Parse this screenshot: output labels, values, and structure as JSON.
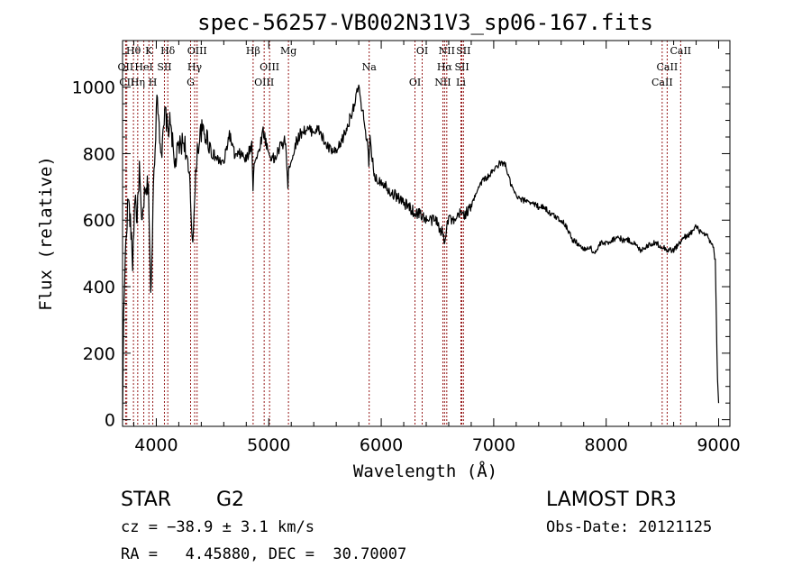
{
  "chart_data": {
    "type": "line",
    "title": "spec-56257-VB002N31V3_sp06-167.fits",
    "xlabel": "Wavelength (Å)",
    "ylabel": "Flux (relative)",
    "xlim": [
      3700,
      9100
    ],
    "ylim": [
      -20,
      1140
    ],
    "xticks": [
      4000,
      5000,
      6000,
      7000,
      8000,
      9000
    ],
    "yticks": [
      0,
      200,
      400,
      600,
      800,
      1000
    ],
    "grid": false,
    "series": [
      {
        "name": "flux",
        "color": "#000000",
        "x": [
          3700,
          3710,
          3730,
          3750,
          3770,
          3790,
          3810,
          3830,
          3850,
          3870,
          3890,
          3910,
          3930,
          3950,
          3960,
          3970,
          3990,
          4010,
          4030,
          4050,
          4080,
          4100,
          4130,
          4160,
          4200,
          4250,
          4300,
          4320,
          4340,
          4360,
          4400,
          4450,
          4500,
          4550,
          4600,
          4650,
          4700,
          4750,
          4800,
          4850,
          4860,
          4870,
          4900,
          4950,
          5000,
          5050,
          5100,
          5150,
          5170,
          5180,
          5200,
          5250,
          5300,
          5350,
          5400,
          5450,
          5500,
          5550,
          5600,
          5650,
          5700,
          5750,
          5780,
          5800,
          5820,
          5850,
          5880,
          5890,
          5900,
          5920,
          5950,
          6000,
          6050,
          6100,
          6150,
          6200,
          6250,
          6300,
          6350,
          6400,
          6450,
          6500,
          6520,
          6540,
          6563,
          6580,
          6600,
          6650,
          6700,
          6750,
          6800,
          6850,
          6900,
          6950,
          7000,
          7050,
          7100,
          7150,
          7200,
          7250,
          7300,
          7350,
          7400,
          7450,
          7500,
          7550,
          7600,
          7650,
          7700,
          7750,
          7800,
          7850,
          7900,
          7950,
          8000,
          8050,
          8100,
          8150,
          8200,
          8250,
          8300,
          8350,
          8400,
          8450,
          8500,
          8550,
          8600,
          8650,
          8700,
          8750,
          8800,
          8850,
          8900,
          8950,
          8970,
          8990,
          9000
        ],
        "values": [
          0,
          320,
          540,
          670,
          590,
          470,
          680,
          600,
          760,
          570,
          660,
          680,
          720,
          360,
          460,
          660,
          840,
          980,
          860,
          800,
          930,
          870,
          900,
          760,
          820,
          840,
          700,
          540,
          640,
          800,
          870,
          850,
          800,
          780,
          770,
          860,
          790,
          800,
          780,
          830,
          700,
          780,
          790,
          870,
          800,
          780,
          820,
          840,
          690,
          770,
          780,
          840,
          870,
          870,
          870,
          870,
          830,
          810,
          800,
          840,
          880,
          940,
          970,
          1010,
          940,
          900,
          820,
          760,
          840,
          780,
          720,
          720,
          700,
          680,
          670,
          650,
          640,
          620,
          620,
          600,
          600,
          600,
          560,
          570,
          540,
          580,
          610,
          590,
          620,
          620,
          640,
          690,
          720,
          730,
          750,
          770,
          770,
          710,
          670,
          660,
          660,
          650,
          640,
          640,
          620,
          610,
          600,
          580,
          540,
          530,
          510,
          520,
          500,
          530,
          530,
          540,
          550,
          540,
          540,
          530,
          510,
          520,
          530,
          530,
          520,
          510,
          510,
          530,
          550,
          560,
          580,
          560,
          550,
          520,
          480,
          120,
          50
        ]
      }
    ],
    "lines": [
      {
        "name": "H-theta",
        "label": "Hθ",
        "x": 3797
      },
      {
        "name": "O-II-a",
        "label": "OII",
        "x": 3727
      },
      {
        "name": "C-II",
        "label": "CII",
        "x": 3738
      },
      {
        "name": "K",
        "label": "K",
        "x": 3934
      },
      {
        "name": "He-I",
        "label": "HeI",
        "x": 3889
      },
      {
        "name": "H-eta",
        "label": "Hη",
        "x": 3835
      },
      {
        "name": "H-delta",
        "label": "Hδ",
        "x": 4102
      },
      {
        "name": "S-II-a",
        "label": "SII",
        "x": 4072
      },
      {
        "name": "H",
        "label": "H",
        "x": 3969
      },
      {
        "name": "O-III-a",
        "label": "OIII",
        "x": 4363
      },
      {
        "name": "H-gamma",
        "label": "Hγ",
        "x": 4341
      },
      {
        "name": "G",
        "label": "G",
        "x": 4305
      },
      {
        "name": "H-beta",
        "label": "Hβ",
        "x": 4861
      },
      {
        "name": "O-III-b",
        "label": "OIII",
        "x": 5007
      },
      {
        "name": "O-III-c",
        "label": "OIII",
        "x": 4959
      },
      {
        "name": "Mg",
        "label": "Mg",
        "x": 5175
      },
      {
        "name": "Na",
        "label": "Na",
        "x": 5893
      },
      {
        "name": "O-I-a",
        "label": "OI",
        "x": 6300
      },
      {
        "name": "O-I-b",
        "label": "OI",
        "x": 6364
      },
      {
        "name": "H-alpha",
        "label": "Hα",
        "x": 6563
      },
      {
        "name": "N-II-a",
        "label": "NII",
        "x": 6548
      },
      {
        "name": "N-II-b",
        "label": "NII",
        "x": 6583
      },
      {
        "name": "S-II-b",
        "label": "SII",
        "x": 6717
      },
      {
        "name": "Li",
        "label": "Li",
        "x": 6708
      },
      {
        "name": "S-II-c",
        "label": "SII",
        "x": 6731
      },
      {
        "name": "Ca-II-a",
        "label": "CaII",
        "x": 8542
      },
      {
        "name": "Ca-II-b",
        "label": "CaII",
        "x": 8498
      },
      {
        "name": "Ca-II-c",
        "label": "CaII",
        "x": 8662
      }
    ],
    "line_color": "#8b0000"
  },
  "footer": {
    "object_class": "STAR",
    "subclass": "G2",
    "cz": "cz = −38.9 ± 3.1 km/s",
    "coords": "RA =   4.45880, DEC =  30.70007",
    "survey": "LAMOST DR3",
    "obs_date": "Obs-Date: 20121125"
  }
}
